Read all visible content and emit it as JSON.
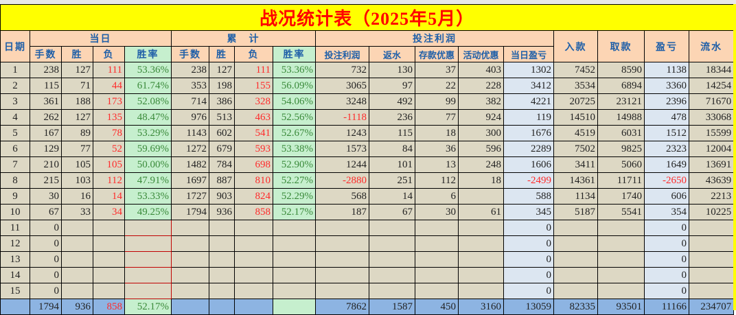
{
  "title": "战况统计表（2025年5月）",
  "headers": {
    "date": "日期",
    "daily": "当日",
    "cumulative": "累　计",
    "betting_profit_group": "投注利润",
    "deposit": "入款",
    "withdraw": "取款",
    "profit_loss": "盈亏",
    "turnover": "流水",
    "sub": [
      "手数",
      "胜",
      "负",
      "胜率",
      "手数",
      "胜",
      "负",
      "胜率",
      "投注利润",
      "返水",
      "存款优惠",
      "活动优惠",
      "当日盈亏"
    ]
  },
  "rows": [
    [
      "1",
      "238",
      "127",
      "111",
      "53.36%",
      "238",
      "127",
      "111",
      "53.36%",
      "732",
      "130",
      "37",
      "403",
      "1302",
      "7452",
      "8590",
      "1138",
      "18344"
    ],
    [
      "2",
      "115",
      "71",
      "44",
      "61.74%",
      "353",
      "198",
      "155",
      "56.09%",
      "3065",
      "97",
      "22",
      "228",
      "3412",
      "3534",
      "6894",
      "3360",
      "14254"
    ],
    [
      "3",
      "361",
      "188",
      "173",
      "52.08%",
      "714",
      "386",
      "328",
      "54.06%",
      "3248",
      "492",
      "99",
      "382",
      "4221",
      "20725",
      "23121",
      "2396",
      "71670"
    ],
    [
      "4",
      "262",
      "127",
      "135",
      "48.47%",
      "976",
      "513",
      "463",
      "52.56%",
      "-1118",
      "236",
      "77",
      "924",
      "119",
      "14510",
      "14988",
      "478",
      "33068"
    ],
    [
      "5",
      "167",
      "89",
      "78",
      "53.29%",
      "1143",
      "602",
      "541",
      "52.67%",
      "1243",
      "115",
      "18",
      "300",
      "1676",
      "4519",
      "6031",
      "1512",
      "15599"
    ],
    [
      "6",
      "129",
      "77",
      "52",
      "59.69%",
      "1272",
      "679",
      "593",
      "53.38%",
      "1573",
      "84",
      "36",
      "596",
      "2289",
      "7502",
      "9825",
      "2323",
      "12004"
    ],
    [
      "7",
      "210",
      "105",
      "105",
      "50.00%",
      "1482",
      "784",
      "698",
      "52.90%",
      "1244",
      "101",
      "13",
      "248",
      "1606",
      "3411",
      "5060",
      "1649",
      "13691"
    ],
    [
      "8",
      "215",
      "103",
      "112",
      "47.91%",
      "1697",
      "887",
      "810",
      "52.27%",
      "-2880",
      "251",
      "112",
      "18",
      "-2499",
      "14361",
      "11711",
      "-2650",
      "43639"
    ],
    [
      "9",
      "30",
      "16",
      "14",
      "53.33%",
      "1727",
      "903",
      "824",
      "52.29%",
      "568",
      "14",
      "6",
      "",
      "588",
      "1134",
      "1740",
      "606",
      "2213"
    ],
    [
      "10",
      "67",
      "33",
      "34",
      "49.25%",
      "1794",
      "936",
      "858",
      "52.17%",
      "187",
      "67",
      "30",
      "61",
      "345",
      "5187",
      "5541",
      "354",
      "10225"
    ],
    [
      "11",
      "0",
      "",
      "",
      "",
      "",
      "",
      "",
      "",
      "",
      "",
      "",
      "",
      "0",
      "",
      "",
      "0",
      ""
    ],
    [
      "12",
      "0",
      "",
      "",
      "",
      "",
      "",
      "",
      "",
      "",
      "",
      "",
      "",
      "0",
      "",
      "",
      "0",
      ""
    ],
    [
      "13",
      "0",
      "",
      "",
      "",
      "",
      "",
      "",
      "",
      "",
      "",
      "",
      "",
      "0",
      "",
      "",
      "0",
      ""
    ],
    [
      "14",
      "0",
      "",
      "",
      "",
      "",
      "",
      "",
      "",
      "",
      "",
      "",
      "",
      "0",
      "",
      "",
      "0",
      ""
    ],
    [
      "15",
      "0",
      "",
      "",
      "",
      "",
      "",
      "",
      "",
      "",
      "",
      "",
      "",
      "0",
      "",
      "",
      "0",
      ""
    ]
  ],
  "totals": [
    "",
    "1794",
    "936",
    "858",
    "52.17%",
    "",
    "",
    "",
    "",
    "7862",
    "1587",
    "450",
    "3160",
    "13059",
    "82335",
    "93501",
    "11166",
    "234707"
  ],
  "colors": {
    "title_bg": "#ffff00",
    "title_text": "#ff0000",
    "header_bg": "#fcd5b4",
    "header_text": "#1f5fa8",
    "cell_bg": "#ddd8c4",
    "rate_bg": "#c6efce",
    "pl_bg": "#dce6f1",
    "total_bg": "#8db4e2",
    "negative": "#ff2a2a"
  }
}
